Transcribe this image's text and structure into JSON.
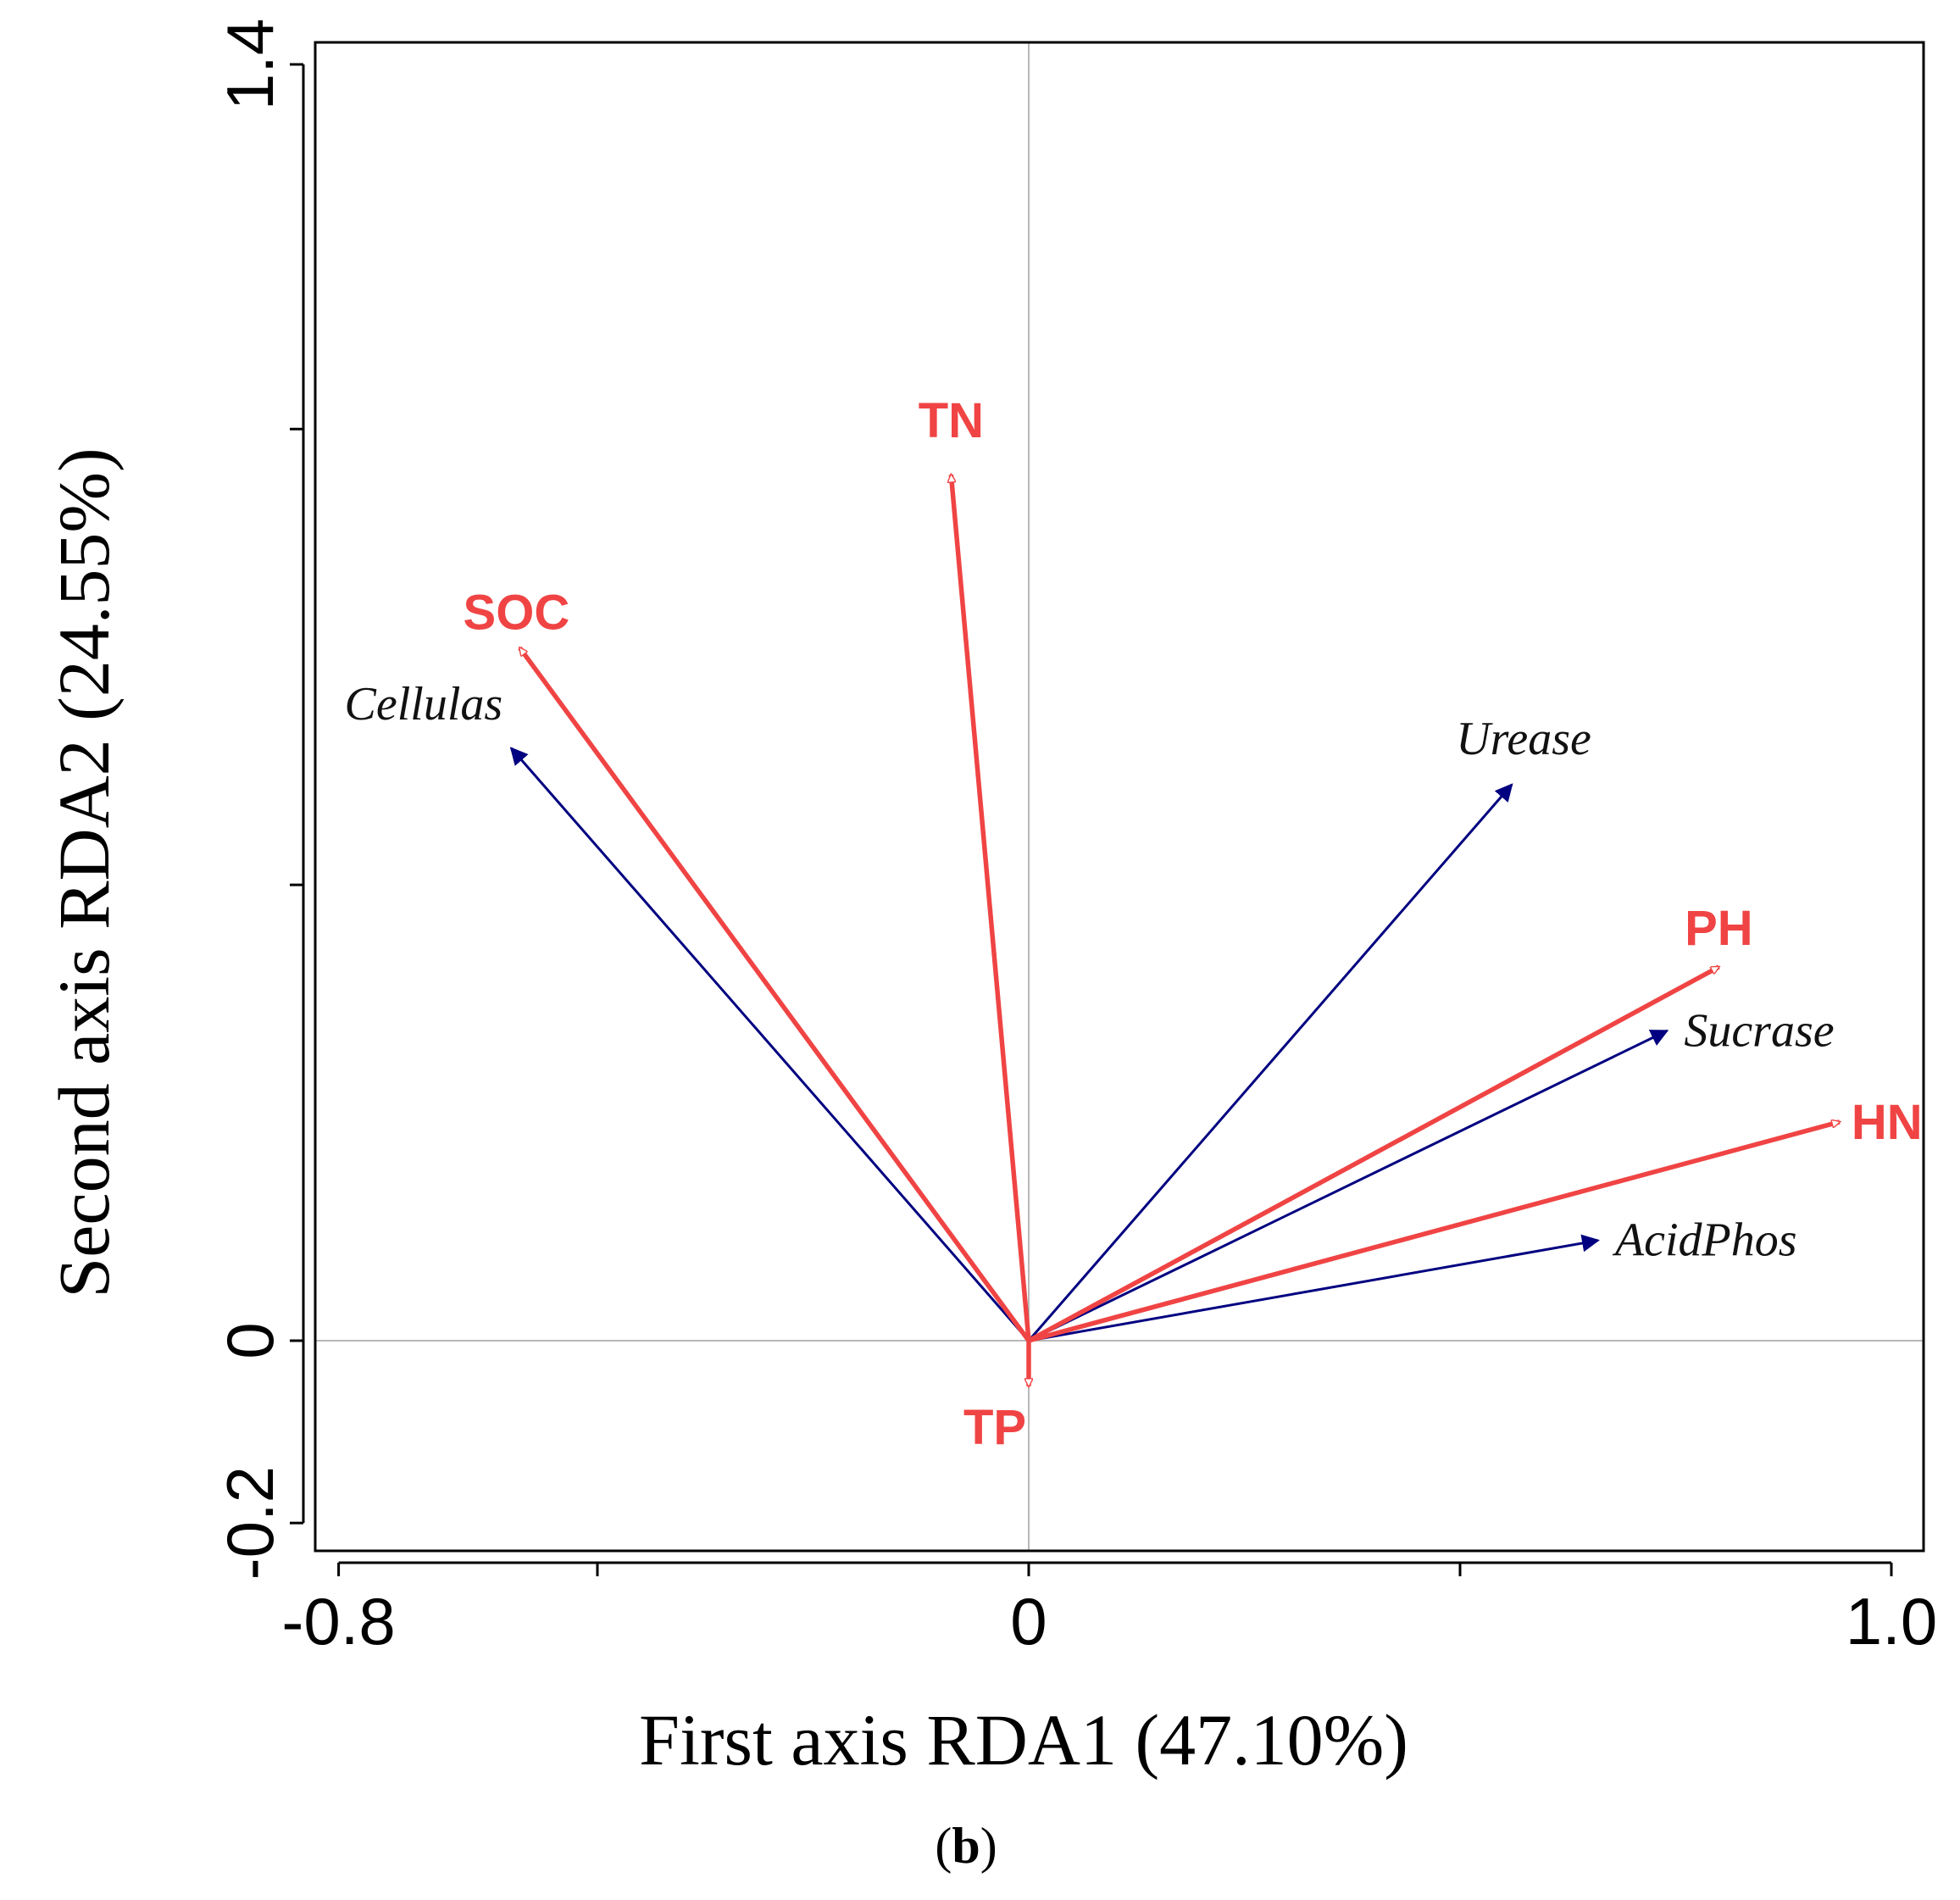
{
  "chart_data": {
    "type": "scatter",
    "subtype": "rda-biplot",
    "xlabel": "First axis RDA1 (47.10%)",
    "ylabel": "Second axis RDA2 (24.55%)",
    "panel_label": {
      "open": "(",
      "letter": "b",
      "close": ")"
    },
    "xlim": [
      -0.8,
      1.0
    ],
    "ylim": [
      -0.2,
      1.4
    ],
    "x_ticks": [
      {
        "value": -0.8,
        "label": "-0.8"
      },
      {
        "value": -0.5,
        "label": ""
      },
      {
        "value": 0,
        "label": "0"
      },
      {
        "value": 0.5,
        "label": ""
      },
      {
        "value": 1.0,
        "label": "1.0"
      }
    ],
    "y_ticks": [
      {
        "value": -0.2,
        "label": "-0.2"
      },
      {
        "value": 0,
        "label": "0"
      },
      {
        "value": 0.5,
        "label": ""
      },
      {
        "value": 1.0,
        "label": ""
      },
      {
        "value": 1.4,
        "label": "1.4"
      }
    ],
    "origin_lines": true,
    "colors": {
      "environment": "#f04444",
      "species": "#000080",
      "axis": "#000000",
      "origin_line": "#a0a0a0"
    },
    "environmental_vectors": [
      {
        "name": "TN",
        "x": -0.09,
        "y": 0.95
      },
      {
        "name": "SOC",
        "x": -0.59,
        "y": 0.76
      },
      {
        "name": "PH",
        "x": 0.8,
        "y": 0.41
      },
      {
        "name": "HN",
        "x": 0.94,
        "y": 0.24
      },
      {
        "name": "TP",
        "x": 0.0,
        "y": -0.05
      }
    ],
    "species_vectors": [
      {
        "name": "Cellulas",
        "x": -0.6,
        "y": 0.65
      },
      {
        "name": "Urease",
        "x": 0.56,
        "y": 0.61
      },
      {
        "name": "Sucrase",
        "x": 0.74,
        "y": 0.34
      },
      {
        "name": "AcidPhos",
        "x": 0.66,
        "y": 0.11
      }
    ]
  }
}
